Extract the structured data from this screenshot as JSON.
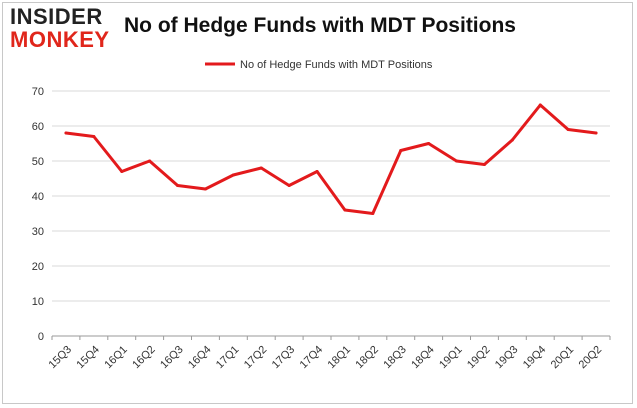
{
  "brand": {
    "top": "INSIDER",
    "bottom": "MONKEY"
  },
  "chart_data": {
    "type": "line",
    "title": "No of Hedge Funds with MDT Positions",
    "xlabel": "",
    "ylabel": "",
    "categories": [
      "15Q3",
      "15Q4",
      "16Q1",
      "16Q2",
      "16Q3",
      "16Q4",
      "17Q1",
      "17Q2",
      "17Q3",
      "17Q4",
      "18Q1",
      "18Q2",
      "18Q3",
      "18Q4",
      "19Q1",
      "19Q2",
      "19Q3",
      "19Q4",
      "20Q1",
      "20Q2"
    ],
    "series": [
      {
        "name": "No of Hedge Funds with MDT Positions",
        "values": [
          58,
          57,
          47,
          50,
          43,
          42,
          46,
          48,
          43,
          47,
          36,
          35,
          53,
          55,
          50,
          49,
          56,
          66,
          59,
          58
        ]
      }
    ],
    "ylim": [
      0,
      70
    ],
    "yticks": [
      0,
      10,
      20,
      30,
      40,
      50,
      60,
      70
    ],
    "grid": true,
    "legend": "top-center",
    "line_color": "#e31a1c"
  }
}
